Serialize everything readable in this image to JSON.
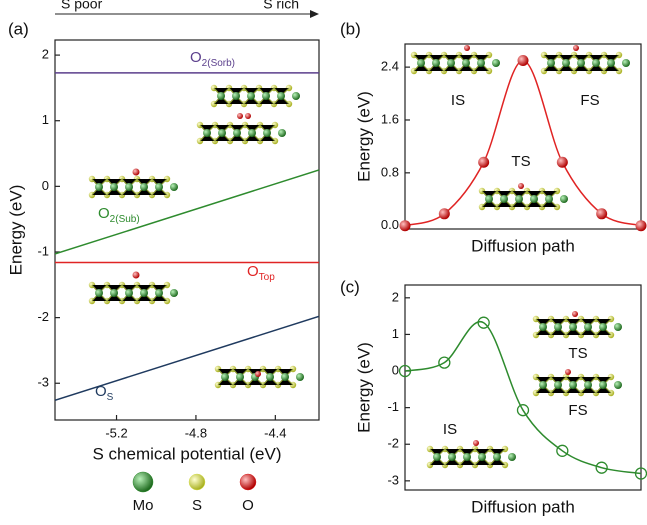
{
  "chart_data": [
    {
      "type": "line",
      "panel_label": "(a)",
      "xlabel": "S chemical potential (eV)",
      "ylabel": "Energy (eV)",
      "arrow_labels": [
        "S poor",
        "S rich"
      ],
      "x": [
        -5.51,
        -4.18
      ],
      "xlim": [
        -5.51,
        -4.18
      ],
      "xticks": [
        -5.2,
        -4.8,
        -4.4
      ],
      "ylim": [
        -3.56,
        2.23
      ],
      "yticks": [
        -3,
        -2,
        -1,
        0,
        1,
        2
      ],
      "series": [
        {
          "name": "O",
          "subscript": "2(Sorb)",
          "color": "#5b3f8c",
          "values": [
            1.73,
            1.73
          ]
        },
        {
          "name": "O",
          "subscript": "2(Sub)",
          "color": "#2e8b2e",
          "values": [
            -1.03,
            0.25
          ]
        },
        {
          "name": "O",
          "subscript": "Top",
          "color": "#e02424",
          "values": [
            -1.16,
            -1.16
          ]
        },
        {
          "name": "O",
          "subscript": "S",
          "color": "#1f3a5f",
          "values": [
            -3.26,
            -1.98
          ]
        }
      ]
    },
    {
      "type": "line",
      "panel_label": "(b)",
      "xlabel": "Diffusion path",
      "ylabel": "Energy (eV)",
      "marker": "sphere",
      "smooth": true,
      "annotations": [
        "IS",
        "TS",
        "FS"
      ],
      "x": [
        0,
        1,
        2,
        3,
        4,
        5,
        6
      ],
      "xlim": [
        0,
        6
      ],
      "ylim": [
        -0.05,
        2.75
      ],
      "yticks": [
        {
          "value": 0,
          "label": "0.0"
        },
        0.8,
        1.6,
        2.4
      ],
      "series": [
        {
          "color": "#e02424",
          "values": [
            0,
            0.18,
            0.96,
            2.5,
            0.96,
            0.18,
            0
          ]
        }
      ]
    },
    {
      "type": "line",
      "panel_label": "(c)",
      "xlabel": "Diffusion path",
      "ylabel": "Energy (eV)",
      "marker": "open-circle",
      "smooth": true,
      "annotations": [
        "TS",
        "FS",
        "IS"
      ],
      "x": [
        0,
        1,
        2,
        3,
        4,
        5,
        6
      ],
      "xlim": [
        0,
        6
      ],
      "ylim": [
        -3.25,
        2.35
      ],
      "yticks": [
        -3,
        -2,
        -1,
        0,
        1,
        2
      ],
      "series": [
        {
          "color": "#2e8b2e",
          "values": [
            0,
            0.23,
            1.32,
            -1.07,
            -2.18,
            -2.64,
            -2.8
          ]
        }
      ]
    }
  ],
  "atom_legend": [
    {
      "name": "Mo",
      "color": "#2e8b2e"
    },
    {
      "name": "S",
      "color": "#d8e04a"
    },
    {
      "name": "O",
      "color": "#e02424"
    }
  ]
}
